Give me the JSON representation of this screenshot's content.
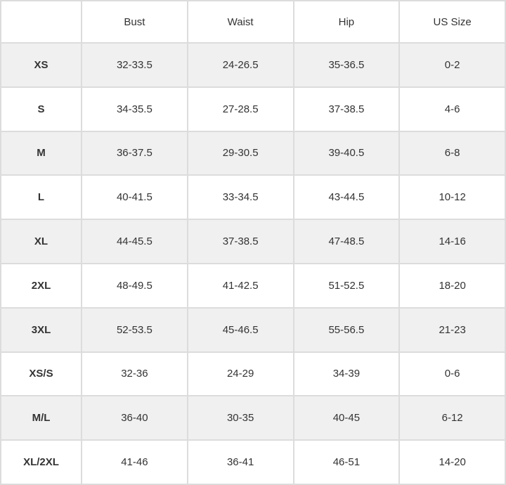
{
  "headers": [
    "",
    "Bust",
    "Waist",
    "Hip",
    "US Size"
  ],
  "rows": [
    [
      "XS",
      "32-33.5",
      "24-26.5",
      "35-36.5",
      "0-2"
    ],
    [
      "S",
      "34-35.5",
      "27-28.5",
      "37-38.5",
      "4-6"
    ],
    [
      "M",
      "36-37.5",
      "29-30.5",
      "39-40.5",
      "6-8"
    ],
    [
      "L",
      "40-41.5",
      "33-34.5",
      "43-44.5",
      "10-12"
    ],
    [
      "XL",
      "44-45.5",
      "37-38.5",
      "47-48.5",
      "14-16"
    ],
    [
      "2XL",
      "48-49.5",
      "41-42.5",
      "51-52.5",
      "18-20"
    ],
    [
      "3XL",
      "52-53.5",
      "45-46.5",
      "55-56.5",
      "21-23"
    ],
    [
      "XS/S",
      "32-36",
      "24-29",
      "34-39",
      "0-6"
    ],
    [
      "M/L",
      "36-40",
      "30-35",
      "40-45",
      "6-12"
    ],
    [
      "XL/2XL",
      "41-46",
      "36-41",
      "46-51",
      "14-20"
    ]
  ],
  "colors": {
    "border": "#dcdcdc",
    "alt_row": "#f0f0f0",
    "text": "#333333"
  }
}
